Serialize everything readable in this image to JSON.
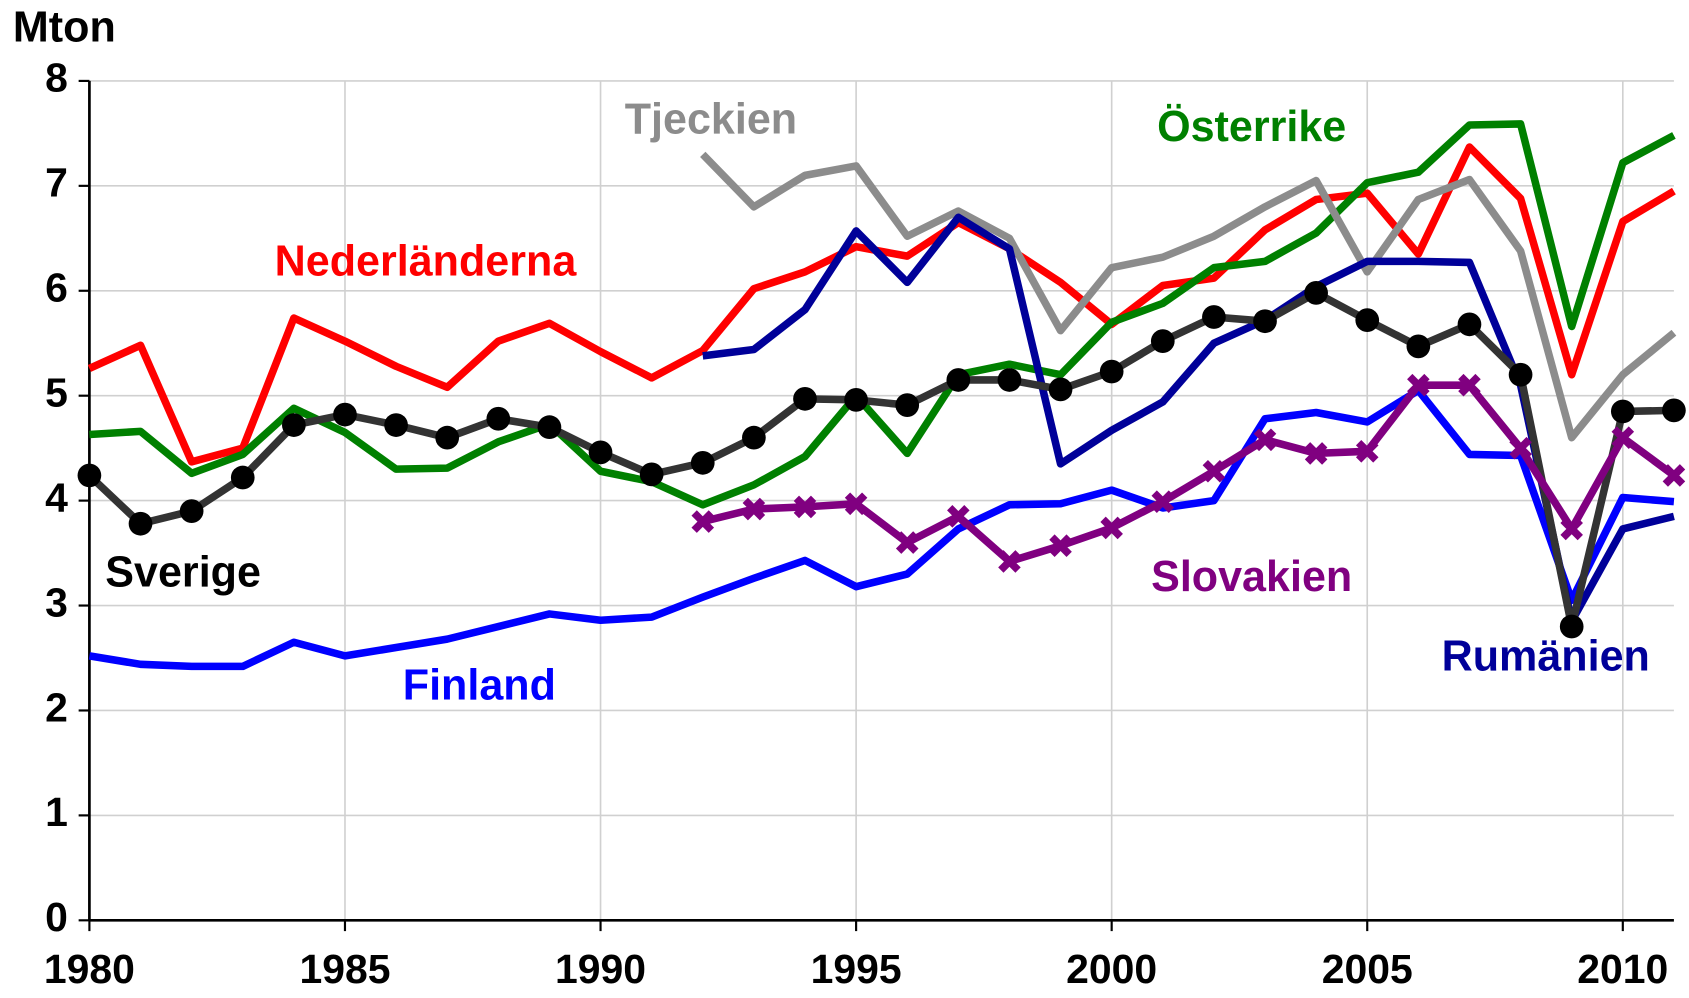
{
  "chart_data": {
    "type": "line",
    "y_label": "Mton",
    "x": [
      1980,
      1981,
      1982,
      1983,
      1984,
      1985,
      1986,
      1987,
      1988,
      1989,
      1990,
      1991,
      1992,
      1993,
      1994,
      1995,
      1996,
      1997,
      1998,
      1999,
      2000,
      2001,
      2002,
      2003,
      2004,
      2005,
      2006,
      2007,
      2008,
      2009,
      2010,
      2011
    ],
    "xlim": [
      1980,
      2011
    ],
    "xticks": [
      1980,
      1985,
      1990,
      1995,
      2000,
      2005,
      2010
    ],
    "ylim": [
      0,
      8
    ],
    "yticks": [
      0,
      1,
      2,
      3,
      4,
      5,
      6,
      7,
      8
    ],
    "grid": true,
    "series": [
      {
        "name": "Nederländerna",
        "color": "#ff0000",
        "values": [
          5.26,
          5.48,
          4.37,
          4.5,
          5.74,
          5.52,
          5.28,
          5.08,
          5.52,
          5.69,
          5.42,
          5.17,
          5.43,
          6.02,
          6.18,
          6.42,
          6.33,
          6.65,
          6.4,
          6.08,
          5.68,
          6.05,
          6.12,
          6.58,
          6.87,
          6.93,
          6.35,
          7.37,
          6.88,
          5.2,
          6.66,
          6.95
        ]
      },
      {
        "name": "Österrike",
        "color": "#008000",
        "values": [
          4.63,
          4.66,
          4.26,
          4.44,
          4.88,
          4.65,
          4.3,
          4.31,
          4.56,
          4.73,
          4.28,
          4.18,
          3.96,
          4.15,
          4.42,
          5.0,
          4.45,
          5.2,
          5.3,
          5.2,
          5.7,
          5.88,
          6.22,
          6.28,
          6.55,
          7.03,
          7.13,
          7.58,
          7.59,
          5.66,
          7.22,
          7.48
        ]
      },
      {
        "name": "Tjeckien",
        "color": "#8c8c8c",
        "values": [
          null,
          null,
          null,
          null,
          null,
          null,
          null,
          null,
          null,
          null,
          null,
          null,
          7.3,
          6.8,
          7.1,
          7.19,
          6.52,
          6.76,
          6.5,
          5.62,
          6.22,
          6.32,
          6.52,
          6.8,
          7.05,
          6.18,
          6.87,
          7.06,
          6.38,
          4.6,
          5.2,
          5.6
        ]
      },
      {
        "name": "Finland",
        "color": "#0000ff",
        "values": [
          2.52,
          2.44,
          2.42,
          2.42,
          2.65,
          2.52,
          2.6,
          2.68,
          2.8,
          2.92,
          2.86,
          2.89,
          3.08,
          3.26,
          3.43,
          3.18,
          3.3,
          3.73,
          3.96,
          3.97,
          4.1,
          3.93,
          4.0,
          4.78,
          4.84,
          4.75,
          5.05,
          4.44,
          4.43,
          3.05,
          4.03,
          3.99
        ]
      },
      {
        "name": "Rumänien",
        "color": "#000099",
        "values": [
          null,
          null,
          null,
          null,
          null,
          null,
          null,
          null,
          null,
          null,
          null,
          null,
          5.38,
          5.44,
          5.82,
          6.57,
          6.08,
          6.7,
          6.4,
          4.35,
          4.67,
          4.94,
          5.5,
          5.72,
          6.04,
          6.28,
          6.28,
          6.27,
          5.1,
          2.85,
          3.73,
          3.85
        ]
      },
      {
        "name": "Sverige",
        "color": "#333333",
        "marker": "circle",
        "values": [
          4.24,
          3.78,
          3.9,
          4.22,
          4.72,
          4.82,
          4.72,
          4.6,
          4.78,
          4.7,
          4.46,
          4.25,
          4.36,
          4.6,
          4.97,
          4.96,
          4.91,
          5.15,
          5.15,
          5.06,
          5.23,
          5.52,
          5.75,
          5.71,
          5.98,
          5.72,
          5.47,
          5.68,
          5.2,
          2.8,
          4.85,
          4.86
        ]
      },
      {
        "name": "Slovakien",
        "color": "#800080",
        "marker": "x",
        "values": [
          null,
          null,
          null,
          null,
          null,
          null,
          null,
          null,
          null,
          null,
          null,
          null,
          3.8,
          3.92,
          3.94,
          3.97,
          3.6,
          3.85,
          3.42,
          3.57,
          3.74,
          3.99,
          4.28,
          4.58,
          4.45,
          4.47,
          5.1,
          5.1,
          4.5,
          3.73,
          4.6,
          4.24
        ]
      }
    ]
  }
}
